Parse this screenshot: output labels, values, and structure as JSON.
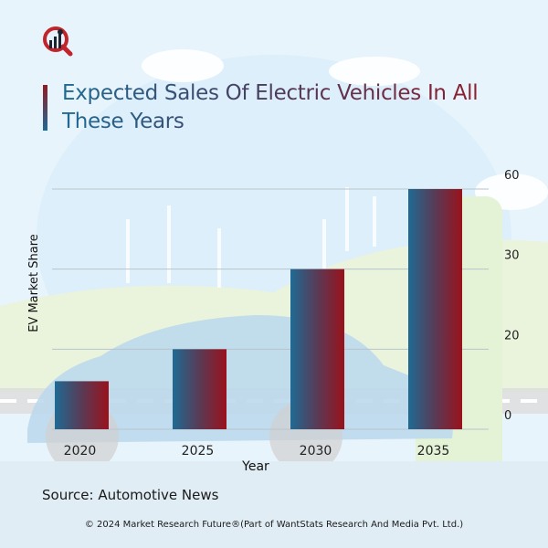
{
  "header": {
    "logo": "market-research-future-logo",
    "title": "Expected Sales Of Electric Vehicles In All These Years"
  },
  "chart_data": {
    "type": "bar",
    "title": "Expected Sales Of Electric Vehicles In All These Years",
    "categories": [
      "2020",
      "2025",
      "2030",
      "2035"
    ],
    "values": [
      12,
      20,
      30,
      60
    ],
    "xlabel": "Year",
    "ylabel": "EV Market Share",
    "yticks": [
      "0",
      "20",
      "30",
      "60"
    ],
    "ylim": [
      0,
      60
    ],
    "y_axis_position": "right",
    "grid": true,
    "bar_gradient": [
      "#1f6a93",
      "#9a121c"
    ]
  },
  "footer": {
    "source": "Source: Automotive News",
    "copyright": "© 2024 Market Research Future®(Part of WantStats Research And Media Pvt. Ltd.)"
  }
}
